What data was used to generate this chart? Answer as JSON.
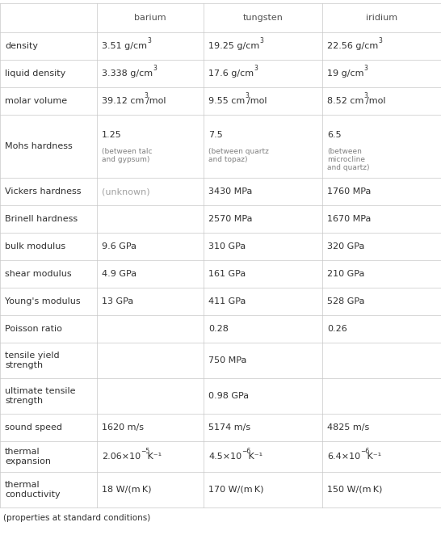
{
  "columns": [
    "",
    "barium",
    "tungsten",
    "iridium"
  ],
  "rows": [
    {
      "property": "density",
      "cells": [
        [
          {
            "t": "3.51 g/cm",
            "s": "3",
            "r": ""
          },
          {
            "t": "19.25 g/cm",
            "s": "3",
            "r": ""
          },
          {
            "t": "22.56 g/cm",
            "s": "3",
            "r": ""
          }
        ]
      ]
    },
    {
      "property": "liquid density",
      "cells": [
        [
          {
            "t": "3.338 g/cm",
            "s": "3",
            "r": ""
          },
          {
            "t": "17.6 g/cm",
            "s": "3",
            "r": ""
          },
          {
            "t": "19 g/cm",
            "s": "3",
            "r": ""
          }
        ]
      ]
    },
    {
      "property": "molar volume",
      "cells": [
        [
          {
            "t": "39.12 cm",
            "s": "3",
            "r": "/mol"
          },
          {
            "t": "9.55 cm",
            "s": "3",
            "r": "/mol"
          },
          {
            "t": "8.52 cm",
            "s": "3",
            "r": "/mol"
          }
        ]
      ]
    },
    {
      "property": "Mohs hardness",
      "cells": [
        [
          {
            "t": "1.25",
            "s": "",
            "r": "",
            "note": "(between talc\nand gypsum)"
          },
          {
            "t": "7.5",
            "s": "",
            "r": "",
            "note": "(between quartz\nand topaz)"
          },
          {
            "t": "6.5",
            "s": "",
            "r": "",
            "note2": "(between\nmicrocline\nand quartz)"
          }
        ]
      ],
      "tall": true
    },
    {
      "property": "Vickers hardness",
      "cells": [
        [
          {
            "t": "(unknown)",
            "s": "",
            "r": "",
            "gray": true
          },
          {
            "t": "3430 MPa",
            "s": "",
            "r": ""
          },
          {
            "t": "1760 MPa",
            "s": "",
            "r": ""
          }
        ]
      ]
    },
    {
      "property": "Brinell hardness",
      "cells": [
        [
          {
            "t": "",
            "s": "",
            "r": ""
          },
          {
            "t": "2570 MPa",
            "s": "",
            "r": ""
          },
          {
            "t": "1670 MPa",
            "s": "",
            "r": ""
          }
        ]
      ]
    },
    {
      "property": "bulk modulus",
      "cells": [
        [
          {
            "t": "9.6 GPa",
            "s": "",
            "r": ""
          },
          {
            "t": "310 GPa",
            "s": "",
            "r": ""
          },
          {
            "t": "320 GPa",
            "s": "",
            "r": ""
          }
        ]
      ]
    },
    {
      "property": "shear modulus",
      "cells": [
        [
          {
            "t": "4.9 GPa",
            "s": "",
            "r": ""
          },
          {
            "t": "161 GPa",
            "s": "",
            "r": ""
          },
          {
            "t": "210 GPa",
            "s": "",
            "r": ""
          }
        ]
      ]
    },
    {
      "property": "Young's modulus",
      "cells": [
        [
          {
            "t": "13 GPa",
            "s": "",
            "r": ""
          },
          {
            "t": "411 GPa",
            "s": "",
            "r": ""
          },
          {
            "t": "528 GPa",
            "s": "",
            "r": ""
          }
        ]
      ]
    },
    {
      "property": "Poisson ratio",
      "cells": [
        [
          {
            "t": "",
            "s": "",
            "r": ""
          },
          {
            "t": "0.28",
            "s": "",
            "r": ""
          },
          {
            "t": "0.26",
            "s": "",
            "r": ""
          }
        ]
      ]
    },
    {
      "property": "tensile yield\nstrength",
      "cells": [
        [
          {
            "t": "",
            "s": "",
            "r": ""
          },
          {
            "t": "750 MPa",
            "s": "",
            "r": ""
          },
          {
            "t": "",
            "s": "",
            "r": ""
          }
        ]
      ],
      "tall": true
    },
    {
      "property": "ultimate tensile\nstrength",
      "cells": [
        [
          {
            "t": "",
            "s": "",
            "r": ""
          },
          {
            "t": "0.98 GPa",
            "s": "",
            "r": ""
          },
          {
            "t": "",
            "s": "",
            "r": ""
          }
        ]
      ],
      "tall": true
    },
    {
      "property": "sound speed",
      "cells": [
        [
          {
            "t": "1620 m/s",
            "s": "",
            "r": ""
          },
          {
            "t": "5174 m/s",
            "s": "",
            "r": ""
          },
          {
            "t": "4825 m/s",
            "s": "",
            "r": ""
          }
        ]
      ]
    },
    {
      "property": "thermal\nexpansion",
      "cells": [
        [
          {
            "t": "2.06×10",
            "s": "−5",
            "r": " K⁻¹",
            "exp": true
          },
          {
            "t": "4.5×10",
            "s": "−6",
            "r": " K⁻¹",
            "exp": true
          },
          {
            "t": "6.4×10",
            "s": "−6",
            "r": " K⁻¹",
            "exp": true
          }
        ]
      ],
      "tall": true
    },
    {
      "property": "thermal\nconductivity",
      "cells": [
        [
          {
            "t": "18 W/(m K)",
            "s": "",
            "r": ""
          },
          {
            "t": "170 W/(m K)",
            "s": "",
            "r": ""
          },
          {
            "t": "150 W/(m K)",
            "s": "",
            "r": ""
          }
        ]
      ],
      "tall": true
    }
  ],
  "footer": "(properties at standard conditions)",
  "line_color": "#c8c8c8",
  "text_color": "#303030",
  "gray_color": "#a0a0a0",
  "note_color": "#808080",
  "header_text_color": "#505050",
  "bg_color": "#ffffff",
  "fs_main": 8.0,
  "fs_header": 8.0,
  "fs_note": 6.5,
  "fs_sup": 5.5,
  "fs_footer": 7.5
}
